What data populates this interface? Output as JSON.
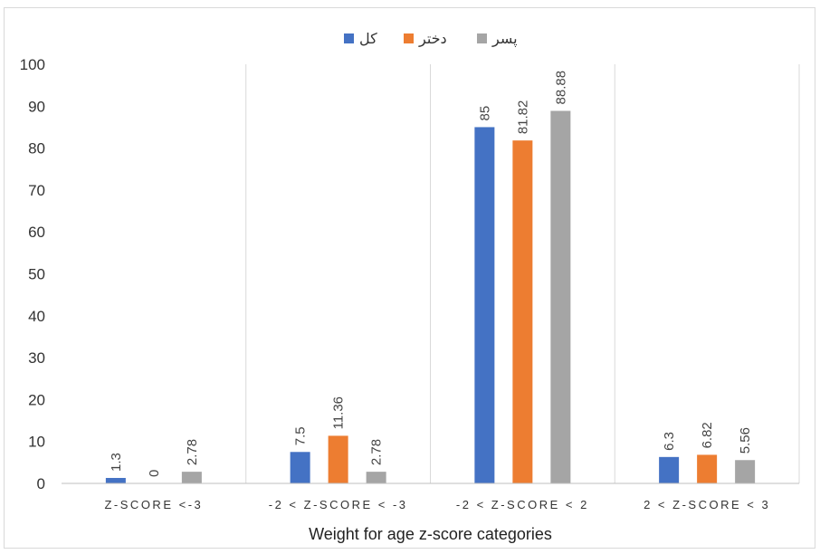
{
  "chart_data": {
    "type": "bar",
    "xlabel": "Weight for age z-score categories",
    "ylim": [
      0,
      100
    ],
    "yticks": [
      0,
      10,
      20,
      30,
      40,
      50,
      60,
      70,
      80,
      90,
      100
    ],
    "categories": [
      "Z-SCORE <-3",
      "-2 < Z-SCORE < -3",
      "-2 < Z-SCORE < 2",
      "2 < Z-SCORE < 3"
    ],
    "series": [
      {
        "name": "کل",
        "color": "#4472c4",
        "values": [
          1.3,
          7.5,
          85,
          6.3
        ]
      },
      {
        "name": "دختر",
        "color": "#ed7d31",
        "values": [
          0,
          11.36,
          81.82,
          6.82
        ]
      },
      {
        "name": "پسر",
        "color": "#a5a5a5",
        "values": [
          2.78,
          2.78,
          88.88,
          5.56
        ]
      }
    ],
    "grid": "vertical separators between categories",
    "legend_position": "top-center"
  }
}
